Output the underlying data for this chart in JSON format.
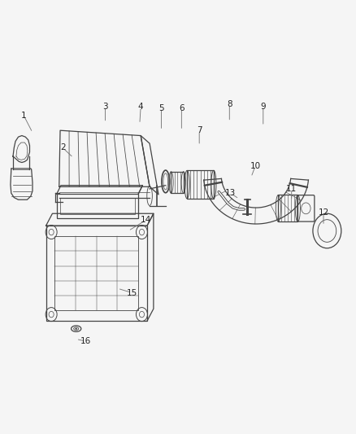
{
  "background_color": "#f5f5f5",
  "diagram_color": "#444444",
  "light_gray": "#888888",
  "fig_width": 4.38,
  "fig_height": 5.33,
  "dpi": 100,
  "callouts": {
    "1": {
      "lpos": [
        0.065,
        0.735
      ],
      "aend": [
        0.09,
        0.695
      ]
    },
    "2": {
      "lpos": [
        0.175,
        0.66
      ],
      "aend": [
        0.205,
        0.637
      ]
    },
    "3": {
      "lpos": [
        0.295,
        0.755
      ],
      "aend": [
        0.295,
        0.718
      ]
    },
    "4": {
      "lpos": [
        0.395,
        0.755
      ],
      "aend": [
        0.392,
        0.715
      ]
    },
    "5": {
      "lpos": [
        0.453,
        0.752
      ],
      "aend": [
        0.453,
        0.7
      ]
    },
    "6": {
      "lpos": [
        0.51,
        0.752
      ],
      "aend": [
        0.51,
        0.7
      ]
    },
    "7": {
      "lpos": [
        0.56,
        0.7
      ],
      "aend": [
        0.56,
        0.665
      ]
    },
    "8": {
      "lpos": [
        0.645,
        0.76
      ],
      "aend": [
        0.645,
        0.72
      ]
    },
    "9": {
      "lpos": [
        0.74,
        0.755
      ],
      "aend": [
        0.74,
        0.71
      ]
    },
    "10": {
      "lpos": [
        0.718,
        0.618
      ],
      "aend": [
        0.706,
        0.592
      ]
    },
    "11": {
      "lpos": [
        0.82,
        0.565
      ],
      "aend": [
        0.82,
        0.538
      ]
    },
    "12": {
      "lpos": [
        0.91,
        0.51
      ],
      "aend": [
        0.91,
        0.48
      ]
    },
    "13": {
      "lpos": [
        0.648,
        0.555
      ],
      "aend": [
        0.672,
        0.542
      ]
    },
    "14": {
      "lpos": [
        0.41,
        0.493
      ],
      "aend": [
        0.36,
        0.468
      ]
    },
    "15": {
      "lpos": [
        0.37,
        0.325
      ],
      "aend": [
        0.33,
        0.335
      ]
    },
    "16": {
      "lpos": [
        0.24,
        0.213
      ],
      "aend": [
        0.213,
        0.218
      ]
    }
  }
}
